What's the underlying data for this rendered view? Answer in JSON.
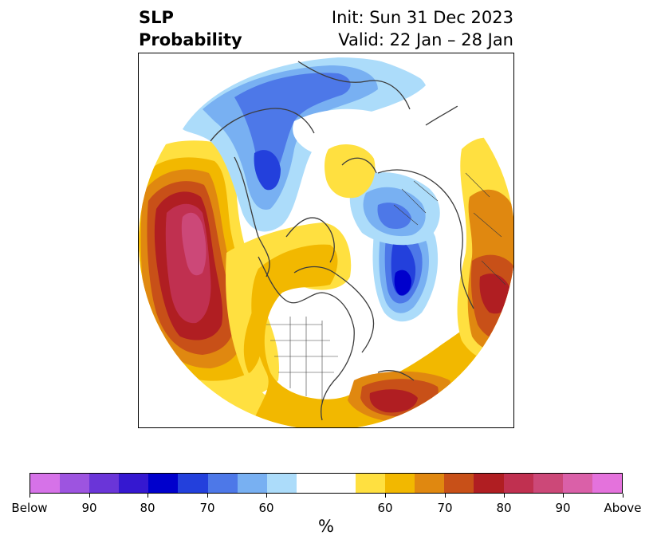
{
  "title": {
    "left_line1": "SLP",
    "left_line2": "Probability",
    "right_line1": "Init: Sun 31 Dec 2023",
    "right_line2": "Valid: 22 Jan – 28 Jan"
  },
  "colorbar": {
    "unit": "%",
    "colors": [
      "#d672e8",
      "#9d54e0",
      "#6a35d8",
      "#3518d0",
      "#0000cc",
      "#2340dc",
      "#4d78e8",
      "#78b0f2",
      "#acdcfa",
      "#ffffff",
      "#ffe040",
      "#f2b800",
      "#e08810",
      "#c85018",
      "#b01e22",
      "#c03050",
      "#cc4878",
      "#da60a8",
      "#e472dc"
    ],
    "tick_labels": [
      "Below",
      "90",
      "80",
      "70",
      "60",
      "60",
      "70",
      "80",
      "90",
      "Above"
    ]
  },
  "map": {
    "projection": "north-polar stereographic",
    "anomaly_regions": [
      {
        "region": "North Pacific",
        "category": "Above",
        "max_level": "90"
      },
      {
        "region": "North Atlantic south of Greenland",
        "category": "Below",
        "max_level": "80"
      },
      {
        "region": "Subtropical western Atlantic",
        "category": "Above",
        "max_level": "80"
      },
      {
        "region": "Europe / Mediterranean",
        "category": "Above",
        "max_level": "80"
      },
      {
        "region": "Eastern Siberia",
        "category": "Below",
        "max_level": "70"
      },
      {
        "region": "Arctic north of Siberia",
        "category": "Above",
        "max_level": "60"
      },
      {
        "region": "Russia / Scandinavia",
        "category": "Below",
        "max_level": "70"
      },
      {
        "region": "Canada / Arctic Archipelago",
        "category": "Above",
        "max_level": "60"
      }
    ]
  }
}
